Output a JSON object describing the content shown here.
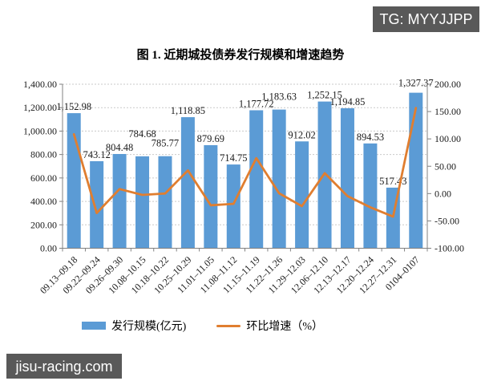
{
  "watermarks": {
    "telegram": "TG: MYYJJPP",
    "site": "jisu-racing.com"
  },
  "chart_data": {
    "type": "bar",
    "combo": "bar-line",
    "title": "图 1. 近期城投债券发行规模和增速趋势",
    "categories": [
      "09.13–09.18",
      "09.22–09.24",
      "09.26–09.30",
      "10.08–10.15",
      "10.18–10.22",
      "10.25–10.29",
      "11.01–11.05",
      "11.08–11.12",
      "11.15–11.19",
      "11.22–11.26",
      "11.29–12.03",
      "12.06–12.10",
      "12.13–12.17",
      "12.20–12.24",
      "12.27–12.31",
      "0104–0107"
    ],
    "series": [
      {
        "name": "发行规模(亿元)",
        "type": "bar",
        "axis": "left",
        "color": "#5B9BD5",
        "values": [
          1152.98,
          743.12,
          804.48,
          784.68,
          785.77,
          1118.85,
          879.69,
          714.75,
          1177.72,
          1183.63,
          912.02,
          1252.15,
          1194.85,
          894.53,
          517.43,
          1327.37
        ],
        "labels": [
          "1,152.98",
          "743.12",
          "804.48",
          "784.68",
          "785.77",
          "1,118.85",
          "879.69",
          "714.75",
          "1,177.72",
          "1,183.63",
          "912.02",
          "1,252.15",
          "1,194.85",
          "894.53",
          "517.43",
          "1,327.37"
        ]
      },
      {
        "name": "环比增速（%）",
        "type": "line",
        "axis": "right",
        "color": "#E07E30",
        "values": [
          108.5,
          -35.6,
          8.3,
          -2.5,
          0.1,
          42.4,
          -21.4,
          -18.8,
          64.8,
          0.5,
          -23.0,
          37.3,
          -4.6,
          -25.1,
          -42.2,
          156.5
        ]
      }
    ],
    "left_axis": {
      "min": 0,
      "max": 1400,
      "step": 200,
      "ticks": [
        "1,400.00",
        "1,200.00",
        "1,000.00",
        "800.00",
        "600.00",
        "400.00",
        "200.00",
        "0.00"
      ]
    },
    "right_axis": {
      "min": -100,
      "max": 200,
      "step": 50,
      "ticks": [
        "200.00",
        "150.00",
        "100.00",
        "50.00",
        "0.00",
        "-50.00",
        "-100.00"
      ]
    },
    "grid": "horizontal dashed",
    "legend_position": "bottom",
    "label_dy": [
      0,
      0,
      0,
      -20,
      -8,
      0,
      0,
      0,
      0,
      -8,
      0,
      0,
      0,
      0,
      0,
      -4
    ]
  }
}
